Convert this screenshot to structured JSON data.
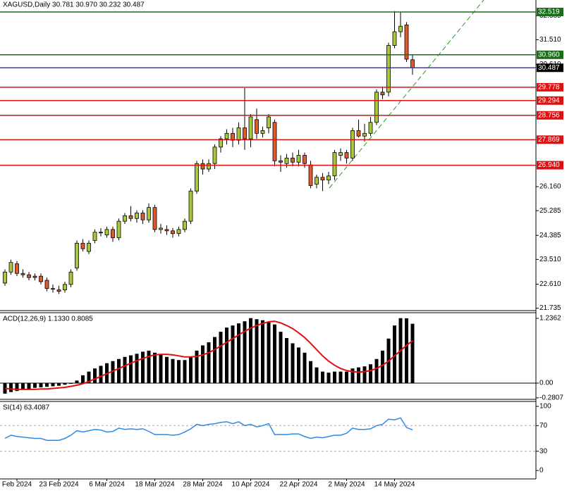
{
  "chart_data": [
    {
      "type": "candlestick",
      "title": "XAGUSD,Daily  30.781 30.970 30.232 30.487",
      "bull_color": "#a8c83c",
      "bear_color": "#e05a2b",
      "categories": [
        null,
        null,
        "Feb 2024",
        null,
        null,
        null,
        null,
        null,
        null,
        "23 Feb 2024",
        null,
        null,
        null,
        null,
        null,
        null,
        null,
        "6 Mar 2024",
        null,
        null,
        null,
        null,
        null,
        null,
        null,
        "18 Mar 2024",
        null,
        null,
        null,
        null,
        null,
        null,
        null,
        "28 Mar 2024",
        null,
        null,
        null,
        null,
        null,
        null,
        null,
        "10 Apr 2024",
        null,
        null,
        null,
        null,
        null,
        null,
        null,
        "22 Apr 2024",
        null,
        null,
        null,
        null,
        null,
        null,
        null,
        "2 May 2024",
        null,
        null,
        null,
        null,
        null,
        null,
        null,
        "14 May 2024",
        null,
        null,
        null
      ],
      "open": [
        22.65,
        23.05,
        23.35,
        23.0,
        22.95,
        22.9,
        22.9,
        22.75,
        22.45,
        22.4,
        22.4,
        22.6,
        23.2,
        24.1,
        23.8,
        24.2,
        24.5,
        24.4,
        24.6,
        24.3,
        24.9,
        25.1,
        25.0,
        25.2,
        24.95,
        25.4,
        24.6,
        24.6,
        24.55,
        24.45,
        24.6,
        24.9,
        26.0,
        27.0,
        26.8,
        27.0,
        27.6,
        27.9,
        28.1,
        27.85,
        28.3,
        27.9,
        28.6,
        28.1,
        28.3,
        28.5,
        27.1,
        27.0,
        27.2,
        27.05,
        27.3,
        26.95,
        26.25,
        26.5,
        26.4,
        26.55,
        27.3,
        27.4,
        27.2,
        28.2,
        28.0,
        28.1,
        28.5,
        29.6,
        29.6,
        31.3,
        31.8,
        32.05,
        30.781
      ],
      "high": [
        23.15,
        23.5,
        23.45,
        23.15,
        23.05,
        23.0,
        23.0,
        22.85,
        22.6,
        22.55,
        22.7,
        23.15,
        24.2,
        24.25,
        24.2,
        24.6,
        24.65,
        24.7,
        24.7,
        25.0,
        25.2,
        25.45,
        25.3,
        25.3,
        25.55,
        25.5,
        24.8,
        24.75,
        24.65,
        24.7,
        25.0,
        26.1,
        27.1,
        27.15,
        27.15,
        27.7,
        28.0,
        28.25,
        28.3,
        28.5,
        29.75,
        28.8,
        29.0,
        28.35,
        28.8,
        28.6,
        27.3,
        27.35,
        27.4,
        27.5,
        27.4,
        27.1,
        26.6,
        26.65,
        26.7,
        27.5,
        27.55,
        27.5,
        28.3,
        28.6,
        28.45,
        28.7,
        29.7,
        29.8,
        31.4,
        32.55,
        32.5,
        32.15,
        30.97
      ],
      "low": [
        22.55,
        22.95,
        22.9,
        22.85,
        22.75,
        22.75,
        22.6,
        22.35,
        22.3,
        22.25,
        22.3,
        22.5,
        23.1,
        23.8,
        23.7,
        24.1,
        24.35,
        24.3,
        24.15,
        24.2,
        24.8,
        24.9,
        24.85,
        24.8,
        24.85,
        24.5,
        24.45,
        24.4,
        24.3,
        24.35,
        24.5,
        24.8,
        25.9,
        26.6,
        26.7,
        26.8,
        27.4,
        27.7,
        27.6,
        27.7,
        27.5,
        27.6,
        27.9,
        27.95,
        28.1,
        26.9,
        26.7,
        26.85,
        26.9,
        26.9,
        26.85,
        26.1,
        26.1,
        26.0,
        26.25,
        26.4,
        27.1,
        27.0,
        27.1,
        27.95,
        27.8,
        28.0,
        28.4,
        29.35,
        29.45,
        31.2,
        31.6,
        30.7,
        30.232
      ],
      "close": [
        23.05,
        23.4,
        23.0,
        22.95,
        22.85,
        22.85,
        22.7,
        22.45,
        22.45,
        22.35,
        22.6,
        23.05,
        24.1,
        23.9,
        24.1,
        24.5,
        24.5,
        24.6,
        24.3,
        24.9,
        25.1,
        25.0,
        25.2,
        24.95,
        25.4,
        24.6,
        24.65,
        24.55,
        24.45,
        24.6,
        24.9,
        26.0,
        27.0,
        26.8,
        27.0,
        27.6,
        27.9,
        28.1,
        27.85,
        28.3,
        27.9,
        28.7,
        28.1,
        28.2,
        28.7,
        27.1,
        27.05,
        27.2,
        27.05,
        27.3,
        27.0,
        26.2,
        26.5,
        26.4,
        26.55,
        27.4,
        27.4,
        27.2,
        28.2,
        28.0,
        28.1,
        28.5,
        29.6,
        29.5,
        31.3,
        31.8,
        32.0,
        30.8,
        30.487
      ],
      "ylim": [
        21.647,
        32.955
      ],
      "yticks": [
        32.385,
        {
          "value": 31.51,
          "label": "31.510"
        },
        {
          "value": 30.61,
          "label": "30.610"
        },
        {
          "value": 26.16,
          "label": "26.160"
        },
        25.285,
        24.385,
        {
          "value": 23.51,
          "label": "23.510"
        },
        {
          "value": 22.61,
          "label": "22.610"
        },
        21.735
      ],
      "levels": [
        {
          "value": 32.519,
          "label": "32.519",
          "color": "#1a6e1a"
        },
        {
          "value": 30.96,
          "label": "30.960",
          "color": "#1a6e1a"
        },
        {
          "value": 30.487,
          "label": "30.487",
          "color": "#4040a0"
        },
        {
          "value": 29.778,
          "label": "29.778",
          "color": "#e01010"
        },
        {
          "value": 29.294,
          "label": "29.294",
          "color": "#e01010"
        },
        {
          "value": 28.756,
          "label": "28.756",
          "color": "#e01010"
        },
        {
          "value": 27.869,
          "label": "27.869",
          "color": "#e01010"
        },
        {
          "value": 26.94,
          "label": "26.940",
          "color": "#e01010"
        }
      ]
    },
    {
      "type": "macd",
      "title": "ACD(12,26,9) 1.1330 0.8085",
      "histogram_color": "#000000",
      "signal_color": "#e01010",
      "histogram": [
        -0.2,
        -0.17,
        -0.15,
        -0.13,
        -0.11,
        -0.09,
        -0.08,
        -0.07,
        -0.06,
        -0.05,
        -0.03,
        -0.01,
        0.05,
        0.15,
        0.22,
        0.28,
        0.33,
        0.38,
        0.42,
        0.46,
        0.5,
        0.53,
        0.56,
        0.6,
        0.62,
        0.58,
        0.55,
        0.5,
        0.46,
        0.44,
        0.44,
        0.5,
        0.62,
        0.72,
        0.78,
        0.88,
        0.98,
        1.06,
        1.1,
        1.14,
        1.18,
        1.24,
        1.22,
        1.2,
        1.16,
        1.12,
        0.98,
        0.86,
        0.76,
        0.68,
        0.58,
        0.42,
        0.3,
        0.22,
        0.2,
        0.22,
        0.22,
        0.22,
        0.28,
        0.3,
        0.32,
        0.36,
        0.46,
        0.62,
        0.85,
        1.1,
        1.24,
        1.2362,
        1.133
      ],
      "signal": [
        -0.1,
        -0.11,
        -0.12,
        -0.12,
        -0.12,
        -0.12,
        -0.11,
        -0.11,
        -0.1,
        -0.09,
        -0.08,
        -0.06,
        -0.04,
        -0.01,
        0.03,
        0.08,
        0.13,
        0.18,
        0.23,
        0.28,
        0.33,
        0.38,
        0.43,
        0.47,
        0.51,
        0.54,
        0.55,
        0.55,
        0.54,
        0.52,
        0.5,
        0.5,
        0.51,
        0.54,
        0.58,
        0.64,
        0.71,
        0.78,
        0.85,
        0.92,
        0.99,
        1.05,
        1.1,
        1.14,
        1.17,
        1.18,
        1.15,
        1.1,
        1.04,
        0.96,
        0.87,
        0.76,
        0.64,
        0.52,
        0.42,
        0.34,
        0.28,
        0.24,
        0.22,
        0.21,
        0.22,
        0.24,
        0.28,
        0.34,
        0.42,
        0.52,
        0.62,
        0.72,
        0.8085
      ],
      "ylim": [
        -0.309,
        1.317
      ],
      "yticks": [
        1.2362,
        {
          "value": 0,
          "label": "0.00"
        },
        -0.2807
      ]
    },
    {
      "type": "line",
      "title": "SI(14) 63.4087",
      "color": "#2a8be8",
      "values": [
        50,
        55,
        53,
        52,
        51,
        50,
        50,
        47,
        47,
        47,
        50,
        55,
        62,
        60,
        62,
        64,
        63,
        60,
        61,
        66,
        64,
        65,
        64,
        65,
        61,
        56,
        56,
        56,
        55,
        56,
        60,
        65,
        72,
        70,
        72,
        73,
        75,
        76,
        73,
        76,
        70,
        72,
        68,
        70,
        73,
        56,
        56,
        56,
        57,
        57,
        53,
        50,
        52,
        51,
        53,
        55,
        55,
        58,
        66,
        64,
        64,
        65,
        70,
        72,
        80,
        79,
        82,
        67,
        63.4087
      ],
      "ylim": [
        -13.2,
        106.6
      ],
      "yticks": [
        100,
        70,
        30,
        0
      ]
    }
  ]
}
